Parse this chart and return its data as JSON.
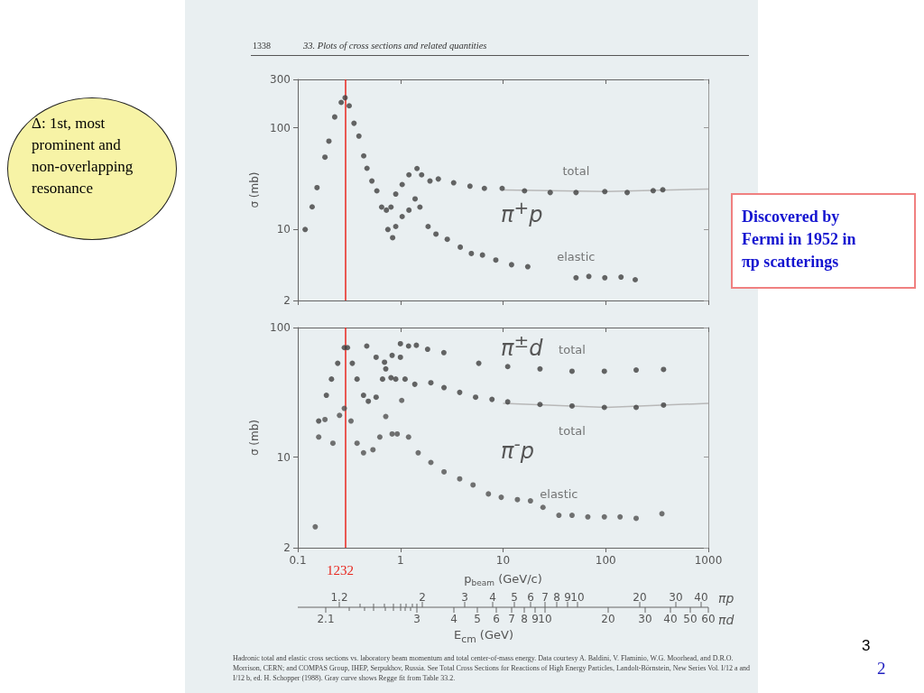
{
  "chart_data": [
    {
      "type": "scatter",
      "title": "33. Plots of cross sections and related quantities",
      "ylabel": "σ (mb)",
      "xlim": [
        0.1,
        1000
      ],
      "xticks": [
        0.1,
        1,
        10,
        100,
        1000
      ],
      "ylim": [
        2,
        300
      ],
      "yticks": [
        2,
        10,
        100,
        300
      ],
      "log": "xy",
      "grid": false,
      "legend": false,
      "marker": "circle",
      "tick_labels": "y",
      "annotations": [
        "1338",
        "π$^{+}$p",
        "Δ: 1st, most prominent and non-overlapping resonance",
        "Discovered by Fermi in 1952 in πp scatterings"
      ],
      "ref_lines": [
        {
          "axis": "x",
          "value": 0.29,
          "color": "#e8261e"
        }
      ],
      "series": [
        {
          "name": "total",
          "color": "#404040",
          "x": [
            0.118,
            0.138,
            0.154,
            0.184,
            0.201,
            0.229,
            0.265,
            0.289,
            0.317,
            0.353,
            0.394,
            0.439,
            0.472,
            0.527,
            0.589,
            0.656,
            0.73,
            0.81,
            0.9,
            1.04,
            1.21,
            1.45,
            1.61,
            1.94,
            2.34,
            3.3,
            4.76,
            6.58,
            9.8,
            16.2,
            28.8,
            51.4,
            98,
            162,
            290,
            360
          ],
          "values": [
            10,
            16.7,
            25.8,
            51.5,
            74,
            128,
            178,
            198,
            165,
            111,
            83,
            53,
            40,
            30,
            24,
            16.6,
            15.5,
            16.6,
            22.3,
            27.7,
            34.5,
            39.8,
            34.5,
            30,
            31.4,
            28.8,
            26.7,
            25.4,
            25.4,
            24,
            23.1,
            23.1,
            23.6,
            23.1,
            24.1,
            24.6
          ]
        },
        {
          "name": "elastic",
          "color": "#404040",
          "x": [
            0.755,
            0.84,
            0.9,
            1.04,
            1.21,
            1.39,
            1.55,
            1.86,
            2.22,
            2.86,
            3.83,
            4.91,
            6.3,
            8.5,
            12.1,
            17.4,
            51.4,
            68.5,
            98,
            141,
            194
          ],
          "values": [
            10,
            8.3,
            10.7,
            13.4,
            15.5,
            20,
            16.6,
            10.7,
            9,
            8,
            6.7,
            5.8,
            5.6,
            5,
            4.5,
            4.3,
            3.35,
            3.45,
            3.35,
            3.4,
            3.2
          ]
        },
        {
          "type": "line",
          "marker": "none",
          "color": "#b8b8b8",
          "x": [
            10,
            100,
            1000
          ],
          "values": [
            24.5,
            23.6,
            25
          ]
        }
      ]
    },
    {
      "type": "scatter",
      "xlabel": "p$_{beam}$ (GeV/c)",
      "ylabel": "σ (mb)",
      "xlim": [
        0.1,
        1000
      ],
      "xticks": [
        0.1,
        1,
        10,
        100,
        1000
      ],
      "ylim": [
        2,
        100
      ],
      "yticks": [
        2,
        10,
        100
      ],
      "log": "xy",
      "grid": false,
      "legend": false,
      "marker": "circle",
      "annotations": [
        "π$^{±}$d",
        "π$^{-}$p",
        "E$_{cm}$ (GeV)",
        "Hadronic total and elastic cross sections vs. laboratory beam momentum and total center-of-mass energy. Data courtesy A. Baldini, V. Flaminio, W.G. Moorhead, and D.R.O. Morrison, CERN; and COMPAS Group, IHEP, Serpukhov, Russia. See Total Cross Sections for Reactions of High Energy Particles, Landolt-Börnstein, New Series Vol. I/12 a and I/12 b, ed. H. Schopper (1988). Gray curve shows Regge fit from Table 33.2.",
        "3",
        "2",
        "1232",
        "1.2",
        "2",
        "3",
        "4",
        "5",
        "6",
        "7",
        "8",
        "9",
        "10",
        "20",
        "30",
        "40",
        "πp",
        "2.1",
        "3",
        "4",
        "5",
        "6",
        "7",
        "8",
        "9",
        "10",
        "20",
        "30",
        "40",
        "50",
        "60",
        "πd"
      ],
      "ref_lines": [
        {
          "axis": "x",
          "value": 0.29,
          "color": "#e8261e"
        }
      ],
      "series": [
        {
          "name": "total",
          "color": "#404040",
          "x": [
            0.47,
            0.58,
            0.7,
            0.83,
            1.0,
            1.2,
            1.43,
            1.84,
            2.65,
            5.8,
            11.1,
            22.9,
            47,
            97,
            198,
            366
          ],
          "values": [
            72,
            59,
            54,
            61,
            75,
            72,
            73,
            68,
            64,
            53,
            50,
            48,
            46,
            46,
            47,
            47.5
          ]
        },
        {
          "name": "total",
          "color": "#404040",
          "x": [
            0.16,
            0.19,
            0.213,
            0.245,
            0.284,
            0.305,
            0.34,
            0.378,
            0.437,
            0.487,
            0.58,
            0.67,
            0.72,
            0.81,
            0.9,
            1.0,
            1.11,
            1.38,
            1.98,
            2.66,
            3.78,
            5.4,
            7.8,
            11.1,
            22.9,
            47,
            97,
            198,
            366
          ],
          "values": [
            19,
            30,
            40,
            53,
            70,
            70,
            53,
            40,
            30,
            27,
            29,
            40,
            48,
            41,
            40,
            59,
            40,
            36.5,
            37.5,
            34.4,
            31.6,
            29,
            27.9,
            26.7,
            25.5,
            24.8,
            24.2,
            24.2,
            25.2
          ]
        },
        {
          "name": "elastic",
          "color": "#505050",
          "x": [
            0.148,
            0.16,
            0.184,
            0.22,
            0.255,
            0.284,
            0.33,
            0.378,
            0.437,
            0.54,
            0.63,
            0.72,
            0.83,
            0.93,
            1.03,
            1.2,
            1.49,
            1.98,
            2.66,
            3.78,
            5.1,
            7.2,
            9.6,
            13.8,
            18.5,
            24.5,
            35,
            47,
            67,
            97,
            138,
            198,
            353
          ],
          "values": [
            2.9,
            14.3,
            19.5,
            12.8,
            21,
            23.8,
            19,
            12.8,
            10.8,
            11.4,
            14.3,
            20.6,
            15.1,
            15.1,
            27.4,
            14.3,
            10.8,
            9.1,
            7.7,
            6.8,
            6.1,
            5.2,
            4.9,
            4.7,
            4.6,
            4.1,
            3.56,
            3.56,
            3.46,
            3.46,
            3.46,
            3.37,
            3.66
          ]
        },
        {
          "type": "line",
          "marker": "none",
          "color": "#b8b8b8",
          "x": [
            10,
            100,
            1000
          ],
          "values": [
            26,
            24.2,
            26
          ]
        }
      ]
    }
  ]
}
